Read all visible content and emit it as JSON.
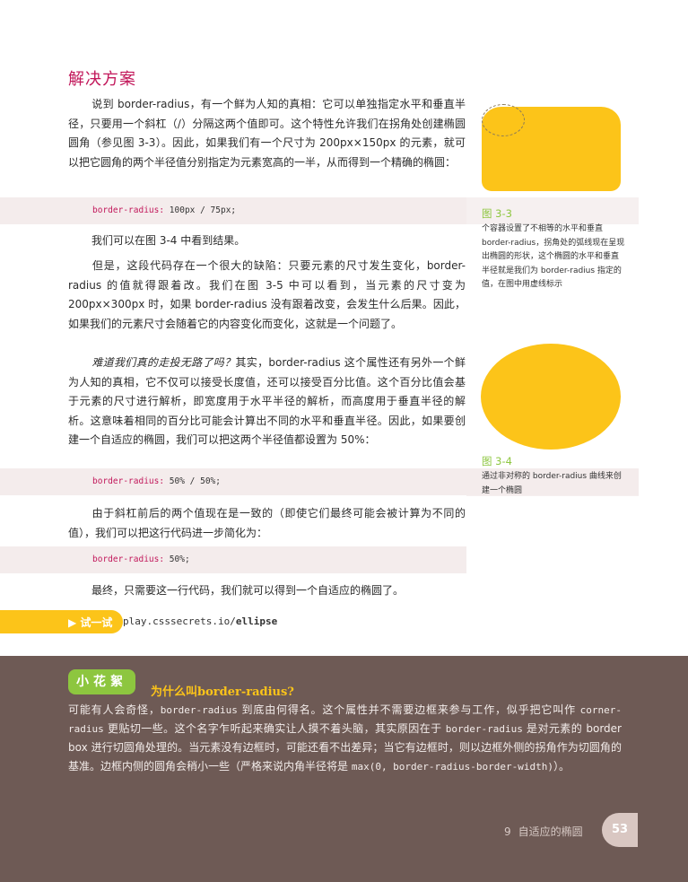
{
  "section_title": "解决方案",
  "paragraphs": [
    "说到 border-radius，有一个鲜为人知的真相：它可以单独指定水平和垂直半径，只要用一个斜杠（/）分隔这两个值即可。这个特性允许我们在拐角处创建椭圆圆角（参见图 3-3）。因此，如果我们有一个尺寸为 200px×150px 的元素，就可以把它圆角的两个半径值分别指定为元素宽高的一半，从而得到一个精确的椭圆：",
    "我们可以在图 3-4 中看到结果。",
    "但是，这段代码存在一个很大的缺陷：只要元素的尺寸发生变化，border-radius 的值就得跟着改。我们在图 3-5 中可以看到，当元素的尺寸变为 200px×300px 时，如果 border-radius 没有跟着改变，会发生什么后果。因此，如果我们的元素尺寸会随着它的内容变化而变化，这就是一个问题了。",
    "难道我们真的走投无路了吗？",
    "其实，border-radius 这个属性还有另外一个鲜为人知的真相，它不仅可以接受长度值，还可以接受百分比值。这个百分比值会基于元素的尺寸进行解析，即宽度用于水平半径的解析，而高度用于垂直半径的解析。这意味着相同的百分比可能会计算出不同的水平和垂直半径。因此，如果要创建一个自适应的椭圆，我们可以把这两个半径值都设置为 50%：",
    "由于斜杠前后的两个值现在是一致的（即使它们最终可能会被计算为不同的值），我们可以把这行代码进一步简化为：",
    "最终，只需要这一行代码，我们就可以得到一个自适应的椭圆了。"
  ],
  "code": [
    {
      "prop": "border-radius:",
      "value": " 100px / 75px;"
    },
    {
      "prop": "border-radius:",
      "value": " 50% / 50%;"
    },
    {
      "prop": "border-radius:",
      "value": " 50%;"
    }
  ],
  "figures": [
    {
      "title": "图 3-3",
      "caption": "个容器设置了不相等的水平和垂直 border-radius，拐角处的弧线现在呈现出椭圆的形状，这个椭圆的水平和垂直半径就是我们为 border-radius 指定的值，在图中用虚线标示"
    },
    {
      "title": "图 3-4",
      "caption": "通过非对称的 border-radius 曲线来创建一个椭圆"
    }
  ],
  "tryit": {
    "label": "▶ 试一试",
    "url_prefix": "play.csssecrets.io/",
    "url_bold": "ellipse"
  },
  "tip": {
    "badge": "小花絮",
    "title": "为什么叫border-radius?",
    "body_1": "可能有人会奇怪，",
    "mono_1": "border-radius",
    "body_2": " 到底由何得名。这个属性并不需要边框来参与工作，似乎把它叫作 ",
    "mono_2": "corner-radius",
    "body_3": " 更贴切一些。这个名字乍听起来确实让人摸不着头脑，其实原因在于 ",
    "mono_3": "border-radius",
    "body_4": " 是对元素的 border box 进行切圆角处理的。当元素没有边框时，可能还看不出差异；当它有边框时，则以边框外侧的拐角作为切圆角的基准。边框内侧的圆角会稍小一些（严格来说内角半径将是 ",
    "mono_4": "max(0, border-radius-border-width)",
    "body_5": "）。"
  },
  "footer": {
    "chapter_num": "9",
    "chapter_title": "自适应的椭圆",
    "page": "53"
  },
  "colors": {
    "accent": "#c2185b",
    "figure_fill": "#fcc419",
    "green": "#8dc63f",
    "tip_bg": "#6e5a55"
  }
}
